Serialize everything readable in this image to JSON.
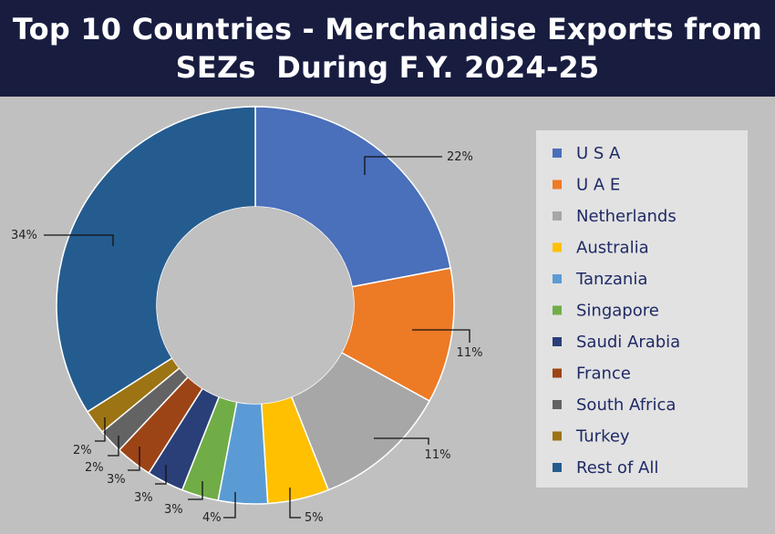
{
  "header": {
    "title_line1": "Top 10 Countries - Merchandise Exports from",
    "title_line2": "SEZs  During F.Y. 2024-25"
  },
  "chart_data": {
    "type": "pie",
    "style": "donut",
    "title": "Top 10 Countries - Merchandise Exports from SEZs  During F.Y. 2024-25",
    "legend_position": "right",
    "categories": [
      "U S A",
      "U A E",
      "Netherlands",
      "Australia",
      "Tanzania",
      "Singapore",
      "Saudi Arabia",
      "France",
      "South Africa",
      "Turkey",
      "Rest of All"
    ],
    "values": [
      22,
      11,
      11,
      5,
      4,
      3,
      3,
      3,
      2,
      2,
      34
    ],
    "value_labels": [
      "22%",
      "11%",
      "11%",
      "5%",
      "4%",
      "3%",
      "3%",
      "3%",
      "2%",
      "2%",
      "34%"
    ],
    "colors": [
      "#4a6fbb",
      "#ed7a25",
      "#a7a7a7",
      "#fec000",
      "#5b9bd5",
      "#70ad47",
      "#2a3f78",
      "#9d4416",
      "#636363",
      "#9c7413",
      "#245c8f"
    ]
  }
}
